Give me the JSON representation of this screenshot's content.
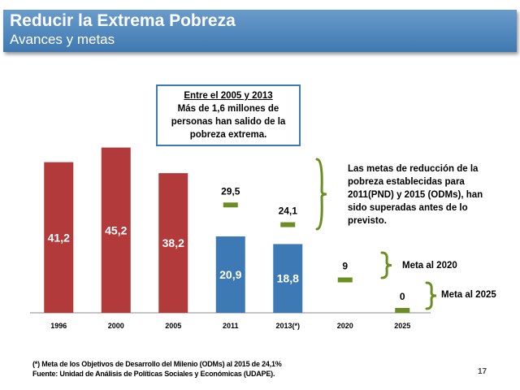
{
  "header": {
    "title": "Reducir la Extrema Pobreza",
    "subtitle": "Avances y metas"
  },
  "callout": {
    "line1": "Entre el 2005 y 2013",
    "line2": "Más de 1,6 millones de",
    "line3": "personas han salido de la",
    "line4": "pobreza extrema."
  },
  "note": {
    "line1": "Las metas de reducción de la",
    "line2": "pobreza establecidas para",
    "line3": "2011(PND) y 2015 (ODMs), han",
    "line4": "sido superadas  antes de lo",
    "line5": "previsto."
  },
  "meta2020": "Meta al 2020",
  "meta2025": "Meta al 2025",
  "footnote1": "(*) Meta de los Objetivos de Desarrollo del Milenio  (ODMs) al 2015 de 24,1%",
  "footnote2": "Fuente: Unidad de Análisis de Políticas Sociales y Económicas (UDAPE).",
  "page_number": "17",
  "colors": {
    "red": "#b23a3a",
    "blue": "#3d7ab5",
    "green": "#6b8e23"
  },
  "chart_data": {
    "type": "bar",
    "categories": [
      "1996",
      "2000",
      "2005",
      "2011",
      "2013(*)",
      "2020",
      "2025"
    ],
    "values": [
      41.2,
      45.2,
      38.2,
      20.9,
      18.8,
      null,
      null
    ],
    "value_labels": [
      "41,2",
      "45,2",
      "38,2",
      "20,9",
      "18,8",
      "",
      ""
    ],
    "bar_colors": [
      "red",
      "red",
      "red",
      "blue",
      "blue",
      "",
      ""
    ],
    "targets": [
      {
        "category": "2011",
        "value": 29.5,
        "label": "29,5"
      },
      {
        "category": "2013(*)",
        "value": 24.1,
        "label": "24,1"
      },
      {
        "category": "2020",
        "value": 9,
        "label": "9"
      },
      {
        "category": "2025",
        "value": 0,
        "label": "0"
      }
    ],
    "ylim": [
      0,
      50
    ],
    "grid": false
  }
}
